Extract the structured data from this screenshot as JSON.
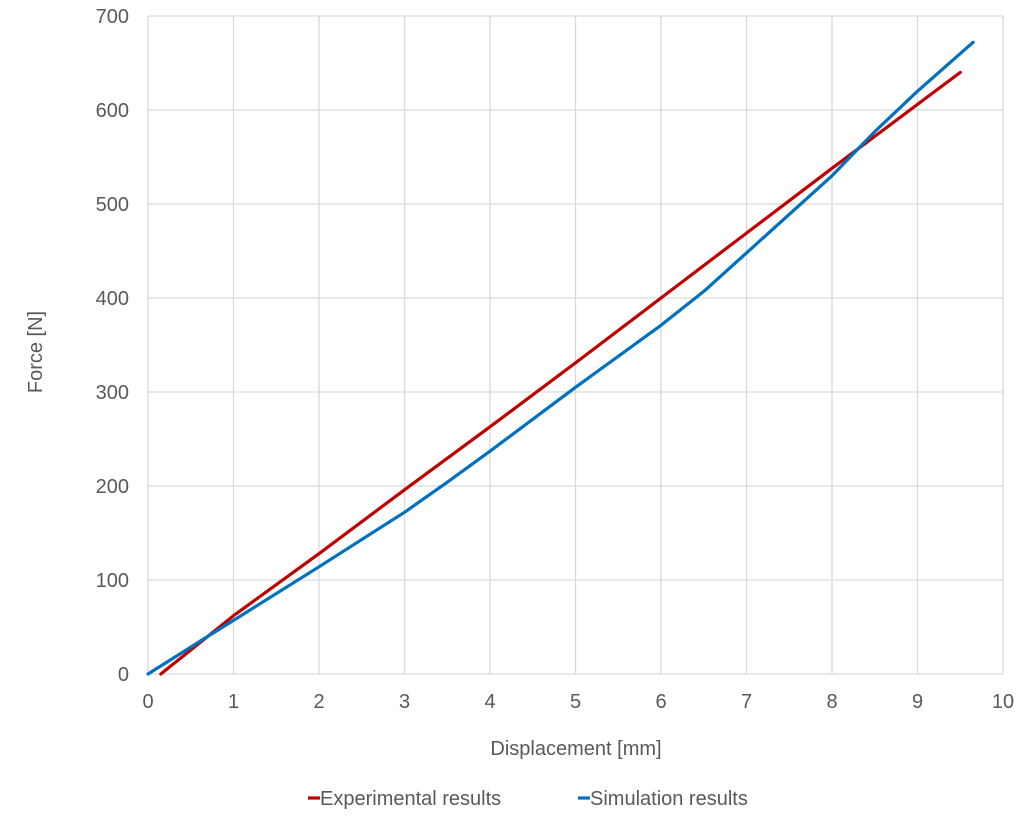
{
  "chart_data": {
    "type": "line",
    "xlabel": "Displacement [mm]",
    "ylabel": "Force [N]",
    "xlim": [
      0,
      10
    ],
    "ylim": [
      0,
      700
    ],
    "x_ticks": [
      0,
      1,
      2,
      3,
      4,
      5,
      6,
      7,
      8,
      9,
      10
    ],
    "y_ticks": [
      0,
      100,
      200,
      300,
      400,
      500,
      600,
      700
    ],
    "grid": true,
    "legend_position": "bottom",
    "series": [
      {
        "name": "Experimental results",
        "color": "#C00000",
        "points": [
          [
            0.15,
            0
          ],
          [
            0.7,
            40
          ],
          [
            1,
            62
          ],
          [
            2,
            128
          ],
          [
            3,
            196
          ],
          [
            4,
            263
          ],
          [
            5,
            331
          ],
          [
            6,
            400
          ],
          [
            7,
            469
          ],
          [
            8,
            538
          ],
          [
            9,
            606
          ],
          [
            9.5,
            640
          ]
        ]
      },
      {
        "name": "Simulation results",
        "color": "#0070C0",
        "points": [
          [
            0,
            0
          ],
          [
            0.7,
            40
          ],
          [
            1,
            57
          ],
          [
            2,
            114
          ],
          [
            3,
            172
          ],
          [
            3.5,
            204
          ],
          [
            4,
            237
          ],
          [
            5,
            305
          ],
          [
            6,
            371
          ],
          [
            6.5,
            407
          ],
          [
            7,
            448
          ],
          [
            8,
            530
          ],
          [
            8.5,
            577
          ],
          [
            9,
            620
          ],
          [
            9.65,
            672
          ]
        ]
      }
    ]
  }
}
